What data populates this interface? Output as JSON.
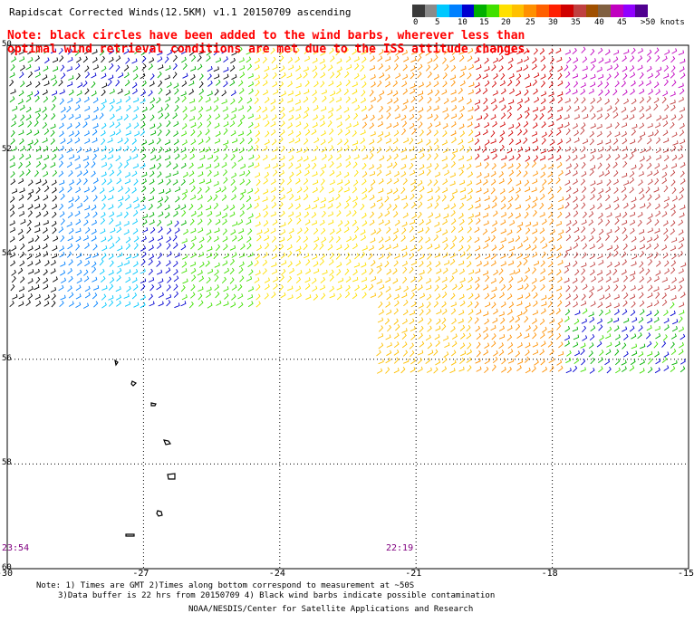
{
  "title": "Rapidscat Corrected Winds(12.5KM) v1.1 20150709 ascending",
  "note_line1": "Note: black circles have been added to the wind barbs, wherever less than",
  "note_line2": "optimal wind retrieval conditions are met due to the ISS attitude changes.",
  "legend": {
    "labels": [
      "0",
      "5",
      "10",
      "15",
      "20",
      "25",
      "30",
      "35",
      "40",
      "45",
      ">50 knots"
    ],
    "colors": [
      "#3a3a3a",
      "#8a8a8a",
      "#00c8ff",
      "#0080ff",
      "#0000d0",
      "#00b000",
      "#40e000",
      "#ffe000",
      "#ffc000",
      "#ff9000",
      "#ff6000",
      "#ff2000",
      "#d00000",
      "#c04040",
      "#a05000",
      "#806040",
      "#c000c0",
      "#9000ff",
      "#500090"
    ]
  },
  "axes": {
    "x_ticks": [
      "-30",
      "-27",
      "-24",
      "-21",
      "-18",
      "-15"
    ],
    "y_ticks": [
      "50",
      "52",
      "54",
      "56",
      "58",
      "60"
    ],
    "x_values": [
      -30,
      -27,
      -24,
      -21,
      -18,
      -15
    ],
    "y_values": [
      50,
      52,
      54,
      56,
      58,
      60
    ]
  },
  "times": {
    "left": "23:54",
    "right": "22:19"
  },
  "footer": {
    "line1": "Note: 1) Times are GMT 2)Times along bottom correspond to measurement at ~50S",
    "line2": "3)Data buffer is 22 hrs from 20150709 4) Black wind barbs indicate possible contamination",
    "line3": "NOAA/NESDIS/Center for Satellite Applications and Research"
  }
}
